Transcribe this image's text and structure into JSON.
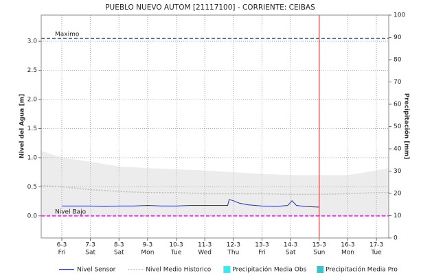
{
  "chart_data": {
    "type": "line",
    "title": "PUEBLO NUEVO AUTOM [21117100] - CORRIENTE: CEIBAS",
    "y_label": "Nivel del Agua [m]",
    "y2_label": "Precipitación [mm]",
    "xlim": [
      5.28,
      17.43
    ],
    "xticks": [
      {
        "value": 6,
        "label": "6-3"
      },
      {
        "value": 7,
        "label": "7-3"
      },
      {
        "value": 8,
        "label": "8-3"
      },
      {
        "value": 9,
        "label": "9-3"
      },
      {
        "value": 10,
        "label": "10-3"
      },
      {
        "value": 11,
        "label": "11-3"
      },
      {
        "value": 12,
        "label": "12-3"
      },
      {
        "value": 13,
        "label": "13-3"
      },
      {
        "value": 14,
        "label": "14-3"
      },
      {
        "value": 15,
        "label": "15-3"
      },
      {
        "value": 16,
        "label": "16-3"
      },
      {
        "value": 17,
        "label": "17-3"
      }
    ],
    "xtick_weekdays": [
      "Fri",
      "Sat",
      "Sat",
      "Mon",
      "Tue",
      "Wed",
      "Thu",
      "Fri",
      "Sat",
      "Sun",
      "Mon",
      "Tue"
    ],
    "ylim": [
      -0.38,
      3.45
    ],
    "yticks": [
      {
        "value": 0,
        "label": "0.0"
      },
      0.5,
      {
        "value": 1,
        "label": "1.0"
      },
      1.5,
      {
        "value": 2,
        "label": "2.0"
      },
      2.5,
      {
        "value": 3,
        "label": "3.0"
      }
    ],
    "y2lim": [
      0,
      100
    ],
    "y2ticks": [
      0,
      10,
      20,
      30,
      40,
      50,
      60,
      70,
      80,
      90,
      100
    ],
    "grid": true,
    "band": {
      "color": "#ececec",
      "x": [
        5.28,
        6,
        7,
        8,
        9,
        10,
        11,
        12,
        13,
        14,
        15,
        16,
        17,
        17.43
      ],
      "upper": [
        1.12,
        1.0,
        0.93,
        0.85,
        0.82,
        0.8,
        0.78,
        0.75,
        0.72,
        0.7,
        0.7,
        0.7,
        0.78,
        0.82
      ],
      "lower": [
        0,
        0,
        0,
        0,
        0,
        0,
        0,
        0,
        0,
        0,
        0,
        0,
        0,
        0
      ]
    },
    "series": [
      {
        "name": "Nivel Sensor",
        "color": "#1f2fc0",
        "style": "solid",
        "x": [
          6,
          6.5,
          7,
          7.5,
          8,
          8.5,
          9,
          9.5,
          10,
          10.5,
          11,
          11.5,
          11.8,
          11.85,
          12,
          12.2,
          12.5,
          13,
          13.5,
          13.9,
          14.05,
          14.2,
          14.5,
          15
        ],
        "values": [
          0.17,
          0.17,
          0.17,
          0.16,
          0.17,
          0.17,
          0.18,
          0.17,
          0.17,
          0.18,
          0.18,
          0.18,
          0.18,
          0.28,
          0.26,
          0.22,
          0.19,
          0.17,
          0.16,
          0.18,
          0.26,
          0.18,
          0.16,
          0.15
        ]
      },
      {
        "name": "Nivel Medio Historico",
        "color": "#bbbbbb",
        "style": "dotted",
        "x": [
          5.28,
          6,
          7,
          8,
          9,
          10,
          11,
          12,
          13,
          14,
          15,
          16,
          17,
          17.43
        ],
        "values": [
          0.52,
          0.5,
          0.45,
          0.42,
          0.4,
          0.4,
          0.38,
          0.38,
          0.38,
          0.37,
          0.37,
          0.38,
          0.4,
          0.4
        ]
      }
    ],
    "legend_extra": [
      {
        "name": "Precipitación Media Obs",
        "color": "#3ee8f0"
      },
      {
        "name": "Precipitación Media Pro",
        "color": "#3cc4cc"
      }
    ],
    "reference_lines": [
      {
        "label": "Maximo",
        "value": 3.05,
        "color": "#5a7aa5"
      },
      {
        "label": "Nivel Bajo",
        "value": 0,
        "color": "#e040e0"
      }
    ],
    "vline": {
      "x": 15,
      "color": "#cc2222"
    }
  }
}
